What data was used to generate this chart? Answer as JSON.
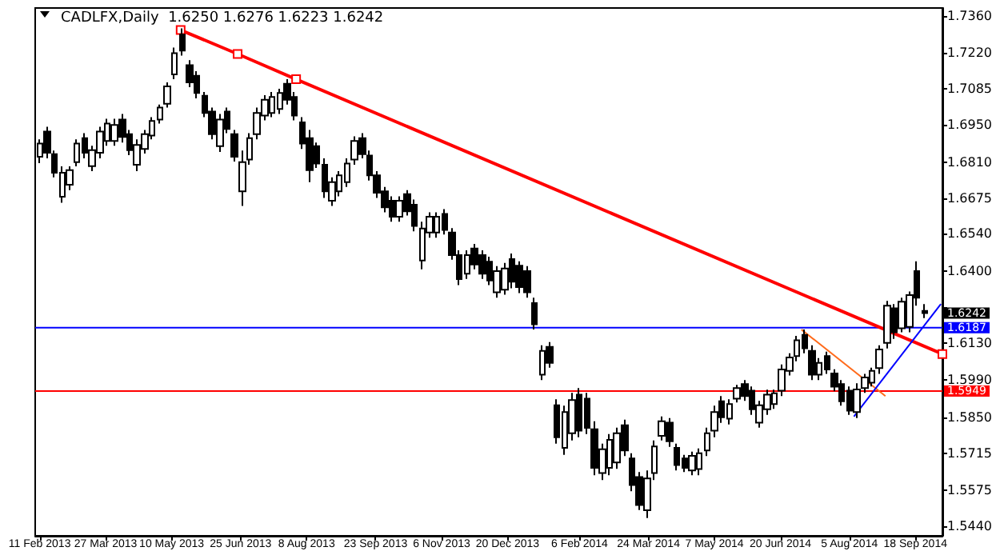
{
  "chart_data": {
    "type": "candlestick",
    "title": "CADLFX,Daily  1.6250 1.6276 1.6223 1.6242",
    "xlim": [
      "2013-02-08",
      "2014-10-06"
    ],
    "xticks": [
      {
        "value": "2013-02-11",
        "label": "11 Feb 2013"
      },
      {
        "value": "2013-03-27",
        "label": "27 Mar 2013"
      },
      {
        "value": "2013-05-10",
        "label": "10 May 2013"
      },
      {
        "value": "2013-06-25",
        "label": "25 Jun 2013"
      },
      {
        "value": "2013-08-08",
        "label": "8 Aug 2013"
      },
      {
        "value": "2013-09-23",
        "label": "23 Sep 2013"
      },
      {
        "value": "2013-11-06",
        "label": "6 Nov 2013"
      },
      {
        "value": "2013-12-20",
        "label": "20 Dec 2013"
      },
      {
        "value": "2014-02-06",
        "label": "6 Feb 2014"
      },
      {
        "value": "2014-03-24",
        "label": "24 Mar 2014"
      },
      {
        "value": "2014-05-07",
        "label": "7 May 2014"
      },
      {
        "value": "2014-06-20",
        "label": "20 Jun 2014"
      },
      {
        "value": "2014-08-05",
        "label": "5 Aug 2014"
      },
      {
        "value": "2014-09-18",
        "label": "18 Sep 2014"
      }
    ],
    "ylim": [
      1.5404,
      1.739
    ],
    "yticks": [
      {
        "value": 1.736,
        "label": "1.7360"
      },
      {
        "value": 1.722,
        "label": "1.7220"
      },
      {
        "value": 1.7085,
        "label": "1.7085"
      },
      {
        "value": 1.695,
        "label": "1.6950"
      },
      {
        "value": 1.681,
        "label": "1.6810"
      },
      {
        "value": 1.6675,
        "label": "1.6675"
      },
      {
        "value": 1.654,
        "label": "1.6540"
      },
      {
        "value": 1.64,
        "label": "1.6400"
      },
      {
        "value": 1.6265,
        "label": null
      },
      {
        "value": 1.613,
        "label": "1.6130"
      },
      {
        "value": 1.599,
        "label": "1.5990"
      },
      {
        "value": 1.585,
        "label": "1.5850"
      },
      {
        "value": 1.5715,
        "label": "1.5715"
      },
      {
        "value": 1.5575,
        "label": "1.5575"
      },
      {
        "value": 1.544,
        "label": "1.5440"
      }
    ],
    "grid": false,
    "ref_lines": [
      {
        "axis": "y",
        "value": 1.6187,
        "label": "1.6187",
        "color": "#0000ff"
      },
      {
        "axis": "y",
        "value": 1.5949,
        "label": "1.5949",
        "color": "#ff0000"
      }
    ],
    "annotations": [
      {
        "text": "1.6242",
        "x": "2014-09-24",
        "y": 1.6242
      }
    ],
    "series": [
      {
        "color": "#000000",
        "x": [
          "2013-02-11",
          "2013-02-16",
          "2013-02-21",
          "2013-02-26",
          "2013-03-03",
          "2013-03-08",
          "2013-03-13",
          "2013-03-18",
          "2013-03-23",
          "2013-03-28",
          "2013-04-02",
          "2013-04-07",
          "2013-04-12",
          "2013-04-17",
          "2013-04-22",
          "2013-04-27",
          "2013-05-02",
          "2013-05-07",
          "2013-05-12",
          "2013-05-17",
          "2013-05-22",
          "2013-05-27",
          "2013-06-01",
          "2013-06-06",
          "2013-06-11",
          "2013-06-16",
          "2013-06-21",
          "2013-06-26",
          "2013-07-01",
          "2013-07-06",
          "2013-07-11",
          "2013-07-16",
          "2013-07-21",
          "2013-07-26",
          "2013-07-31",
          "2013-08-05",
          "2013-08-10",
          "2013-08-15",
          "2013-08-20",
          "2013-08-25",
          "2013-08-30",
          "2013-09-04",
          "2013-09-09",
          "2013-09-14",
          "2013-09-19",
          "2013-09-24",
          "2013-09-29",
          "2013-10-04",
          "2013-10-09",
          "2013-10-14",
          "2013-10-19",
          "2013-10-24",
          "2013-10-29",
          "2013-11-03",
          "2013-11-08",
          "2013-11-13",
          "2013-11-18",
          "2013-11-23",
          "2013-11-28",
          "2013-12-03",
          "2013-12-08",
          "2013-12-13",
          "2013-12-18",
          "2013-12-23",
          "2013-12-28",
          "2014-01-02",
          "2014-01-07",
          "2014-01-12",
          "2014-01-17",
          "2014-01-22",
          "2014-01-27",
          "2014-02-01",
          "2014-02-06",
          "2014-02-11",
          "2014-02-16",
          "2014-02-21",
          "2014-02-26",
          "2014-03-03",
          "2014-03-08",
          "2014-03-13",
          "2014-03-18",
          "2014-03-23",
          "2014-03-28",
          "2014-04-02",
          "2014-04-07",
          "2014-04-12",
          "2014-04-17",
          "2014-04-22",
          "2014-04-27",
          "2014-05-02",
          "2014-05-07",
          "2014-05-12",
          "2014-05-17",
          "2014-05-22",
          "2014-05-27",
          "2014-06-01",
          "2014-06-06",
          "2014-06-11",
          "2014-06-16",
          "2014-06-21",
          "2014-06-26",
          "2014-07-01",
          "2014-07-06",
          "2014-07-11",
          "2014-07-16",
          "2014-07-21",
          "2014-07-26",
          "2014-07-31",
          "2014-08-05",
          "2014-08-10",
          "2014-08-15",
          "2014-08-20",
          "2014-08-25",
          "2014-08-30",
          "2014-09-04",
          "2014-09-09",
          "2014-09-14",
          "2014-09-19",
          "2014-09-24"
        ],
        "ohlc": [
          [
            1.683,
            1.6896,
            1.6806,
            1.688
          ],
          [
            1.6925,
            1.6943,
            1.6824,
            1.6845
          ],
          [
            1.684,
            1.6854,
            1.6753,
            1.677
          ],
          [
            1.668,
            1.6794,
            1.6657,
            1.677
          ],
          [
            1.6725,
            1.6794,
            1.6705,
            1.678
          ],
          [
            1.681,
            1.6896,
            1.6794,
            1.688
          ],
          [
            1.69,
            1.6919,
            1.6824,
            1.6845
          ],
          [
            1.6795,
            1.6872,
            1.6776,
            1.6855
          ],
          [
            1.6845,
            1.6943,
            1.6824,
            1.6925
          ],
          [
            1.689,
            1.6973,
            1.6872,
            1.6955
          ],
          [
            1.689,
            1.6973,
            1.6872,
            1.695
          ],
          [
            1.697,
            1.6991,
            1.6884,
            1.6905
          ],
          [
            1.6915,
            1.6931,
            1.6836,
            1.6855
          ],
          [
            1.68,
            1.6896,
            1.6776,
            1.6875
          ],
          [
            1.686,
            1.6931,
            1.6842,
            1.6915
          ],
          [
            1.691,
            1.6979,
            1.6896,
            1.6965
          ],
          [
            1.697,
            1.7027,
            1.6955,
            1.7015
          ],
          [
            1.703,
            1.711,
            1.7015,
            1.7095
          ],
          [
            1.714,
            1.7241,
            1.7122,
            1.722
          ],
          [
            1.729,
            1.7313,
            1.7211,
            1.723
          ],
          [
            1.7175,
            1.7194,
            1.7092,
            1.711
          ],
          [
            1.7135,
            1.7152,
            1.705,
            1.707
          ],
          [
            1.706,
            1.7074,
            1.6979,
            1.6995
          ],
          [
            1.7,
            1.7015,
            1.6896,
            1.6915
          ],
          [
            1.687,
            1.6991,
            1.6848,
            1.697
          ],
          [
            1.7,
            1.7015,
            1.6919,
            1.6935
          ],
          [
            1.6915,
            1.6931,
            1.6812,
            1.683
          ],
          [
            1.67,
            1.6854,
            1.6645,
            1.681
          ],
          [
            1.682,
            1.6919,
            1.68,
            1.69
          ],
          [
            1.6915,
            1.7015,
            1.6896,
            1.6995
          ],
          [
            1.6985,
            1.7062,
            1.6967,
            1.7045
          ],
          [
            1.6995,
            1.7074,
            1.6979,
            1.7055
          ],
          [
            1.701,
            1.7086,
            1.6991,
            1.707
          ],
          [
            1.7105,
            1.7122,
            1.7027,
            1.7045
          ],
          [
            1.7055,
            1.7074,
            1.6967,
            1.6985
          ],
          [
            1.696,
            1.6979,
            1.686,
            1.688
          ],
          [
            1.69,
            1.6931,
            1.6735,
            1.678
          ],
          [
            1.687,
            1.6884,
            1.6788,
            1.6805
          ],
          [
            1.68,
            1.6824,
            1.6675,
            1.67
          ],
          [
            1.6665,
            1.6753,
            1.6645,
            1.6735
          ],
          [
            1.67,
            1.6776,
            1.6681,
            1.676
          ],
          [
            1.6735,
            1.6824,
            1.6717,
            1.6805
          ],
          [
            1.682,
            1.6907,
            1.68,
            1.689
          ],
          [
            1.69,
            1.6919,
            1.6824,
            1.684
          ],
          [
            1.6835,
            1.6854,
            1.6741,
            1.676
          ],
          [
            1.676,
            1.6776,
            1.6675,
            1.6695
          ],
          [
            1.67,
            1.6717,
            1.6621,
            1.664
          ],
          [
            1.6665,
            1.6681,
            1.6586,
            1.6605
          ],
          [
            1.6605,
            1.6681,
            1.6586,
            1.6665
          ],
          [
            1.669,
            1.6705,
            1.6609,
            1.6625
          ],
          [
            1.665,
            1.6669,
            1.655,
            1.657
          ],
          [
            1.644,
            1.6586,
            1.6407,
            1.656
          ],
          [
            1.6545,
            1.6621,
            1.6526,
            1.6605
          ],
          [
            1.6545,
            1.6621,
            1.6526,
            1.6605
          ],
          [
            1.6615,
            1.6633,
            1.6538,
            1.6555
          ],
          [
            1.6545,
            1.6562,
            1.6443,
            1.646
          ],
          [
            1.646,
            1.6478,
            1.6347,
            1.637
          ],
          [
            1.639,
            1.6478,
            1.6371,
            1.646
          ],
          [
            1.6485,
            1.6502,
            1.6407,
            1.6425
          ],
          [
            1.646,
            1.6478,
            1.6371,
            1.639
          ],
          [
            1.6435,
            1.6454,
            1.6347,
            1.6365
          ],
          [
            1.632,
            1.6419,
            1.63,
            1.64
          ],
          [
            1.633,
            1.6431,
            1.6311,
            1.641
          ],
          [
            1.6445,
            1.6466,
            1.6335,
            1.636
          ],
          [
            1.642,
            1.6437,
            1.6317,
            1.634
          ],
          [
            1.64,
            1.6419,
            1.63,
            1.632
          ],
          [
            1.628,
            1.63,
            1.618,
            1.62
          ],
          [
            1.601,
            1.6121,
            1.599,
            1.61
          ],
          [
            1.6115,
            1.6133,
            1.6037,
            1.6055
          ],
          [
            1.5895,
            1.5918,
            1.5751,
            1.5775
          ],
          [
            1.5735,
            1.5894,
            1.5709,
            1.587
          ],
          [
            1.579,
            1.5942,
            1.5763,
            1.5915
          ],
          [
            1.5935,
            1.596,
            1.5775,
            1.58
          ],
          [
            1.592,
            1.5942,
            1.5787,
            1.581
          ],
          [
            1.5805,
            1.5835,
            1.5632,
            1.566
          ],
          [
            1.564,
            1.5751,
            1.5614,
            1.573
          ],
          [
            1.566,
            1.5787,
            1.5632,
            1.5765
          ],
          [
            1.568,
            1.5811,
            1.5656,
            1.579
          ],
          [
            1.582,
            1.5841,
            1.5704,
            1.5725
          ],
          [
            1.5695,
            1.5715,
            1.5572,
            1.5595
          ],
          [
            1.5625,
            1.5644,
            1.5501,
            1.552
          ],
          [
            1.55,
            1.565,
            1.5471,
            1.562
          ],
          [
            1.564,
            1.5763,
            1.5614,
            1.574
          ],
          [
            1.578,
            1.5853,
            1.5763,
            1.5835
          ],
          [
            1.583,
            1.5847,
            1.5739,
            1.576
          ],
          [
            1.5735,
            1.5751,
            1.565,
            1.567
          ],
          [
            1.5695,
            1.5709,
            1.5644,
            1.566
          ],
          [
            1.565,
            1.5721,
            1.5632,
            1.5705
          ],
          [
            1.5655,
            1.5733,
            1.5632,
            1.5715
          ],
          [
            1.5725,
            1.5811,
            1.5704,
            1.579
          ],
          [
            1.58,
            1.5894,
            1.5775,
            1.587
          ],
          [
            1.591,
            1.593,
            1.5829,
            1.585
          ],
          [
            1.5845,
            1.5918,
            1.5823,
            1.59
          ],
          [
            1.592,
            1.5972,
            1.5906,
            1.596
          ],
          [
            1.5975,
            1.599,
            1.5912,
            1.593
          ],
          [
            1.595,
            1.5966,
            1.5859,
            1.588
          ],
          [
            1.583,
            1.5912,
            1.5811,
            1.5895
          ],
          [
            1.588,
            1.5954,
            1.5859,
            1.5935
          ],
          [
            1.59,
            1.5954,
            1.5882,
            1.594
          ],
          [
            1.595,
            1.6049,
            1.593,
            1.603
          ],
          [
            1.6025,
            1.6091,
            1.6007,
            1.6075
          ],
          [
            1.608,
            1.6156,
            1.6061,
            1.614
          ],
          [
            1.616,
            1.618,
            1.6091,
            1.611
          ],
          [
            1.61,
            1.6121,
            1.599,
            1.601
          ],
          [
            1.601,
            1.6073,
            1.599,
            1.6055
          ],
          [
            1.608,
            1.6097,
            1.6013,
            1.603
          ],
          [
            1.6015,
            1.6031,
            1.5948,
            1.5965
          ],
          [
            1.5975,
            1.599,
            1.5894,
            1.591
          ],
          [
            1.595,
            1.5966,
            1.5859,
            1.5875
          ],
          [
            1.587,
            1.5978,
            1.5847,
            1.5955
          ],
          [
            1.596,
            1.6013,
            1.5942,
            1.6
          ],
          [
            1.598,
            1.6037,
            1.5966,
            1.6025
          ],
          [
            1.6035,
            1.6121,
            1.6013,
            1.6105
          ],
          [
            1.613,
            1.6288,
            1.6109,
            1.627
          ],
          [
            1.626,
            1.6276,
            1.6145,
            1.617
          ],
          [
            1.6185,
            1.63,
            1.617,
            1.6285
          ],
          [
            1.619,
            1.6323,
            1.617,
            1.631
          ],
          [
            1.64,
            1.6437,
            1.627,
            1.63
          ],
          [
            1.625,
            1.6276,
            1.6223,
            1.6242
          ]
        ]
      },
      {
        "type": "line",
        "color": "#ff0000",
        "x": [
          "2013-05-16",
          "2013-06-23",
          "2013-08-01",
          "2014-10-06"
        ],
        "values": [
          1.7307,
          1.7217,
          1.7122,
          1.6088
        ],
        "marker": "square"
      },
      {
        "type": "line",
        "color": "#ff6a1a",
        "x": [
          "2014-07-04",
          "2014-08-29"
        ],
        "values": [
          1.618,
          1.593
        ]
      },
      {
        "type": "line",
        "color": "#0000ff",
        "x": [
          "2014-08-08",
          "2014-10-05"
        ],
        "values": [
          1.5853,
          1.6276
        ]
      }
    ]
  }
}
